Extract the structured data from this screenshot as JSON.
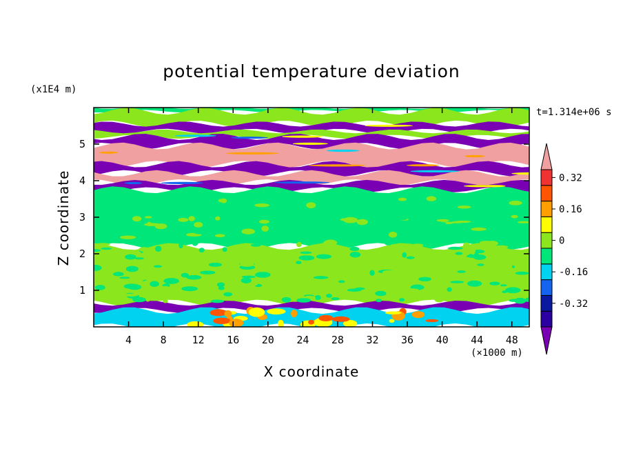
{
  "chart_data": {
    "type": "heatmap",
    "title": "potential temperature deviation",
    "xlabel": "X coordinate",
    "ylabel": "Z coordinate",
    "x_unit": "(×1000 m)",
    "y_unit": "(x1E4 m)",
    "time_label": "t=1.314e+06 s",
    "xlim": [
      0,
      50
    ],
    "ylim": [
      0,
      6
    ],
    "xticks": [
      4,
      8,
      12,
      16,
      20,
      24,
      28,
      32,
      36,
      40,
      44,
      48
    ],
    "yticks": [
      1,
      2,
      3,
      4,
      5
    ],
    "colorbar": {
      "levels": [
        -0.4,
        -0.32,
        -0.24,
        -0.16,
        -0.08,
        0,
        0.08,
        0.16,
        0.24,
        0.32,
        0.4
      ],
      "tick_labels": [
        "0.32",
        "0.16",
        "0",
        "-0.16",
        "-0.32"
      ],
      "tick_values": [
        0.32,
        0.16,
        0,
        -0.16,
        -0.32
      ],
      "colors": [
        "#7a00b4",
        "#2a00a0",
        "#0a1aa0",
        "#1464f0",
        "#00d2f0",
        "#00e678",
        "#8ce61e",
        "#ffff00",
        "#ffa000",
        "#ff5500",
        "#f03232",
        "#f0a0a0"
      ]
    },
    "bands": [
      {
        "z": [
          5.9,
          6.0
        ],
        "class": "0",
        "color": "#00e678"
      },
      {
        "z": [
          5.55,
          5.9
        ],
        "class": "0.08",
        "color": "#8ce61e"
      },
      {
        "z": [
          5.35,
          5.55
        ],
        "class": "-0.4",
        "color": "#7a00b4"
      },
      {
        "z": [
          5.2,
          5.35
        ],
        "class": "0.08",
        "color": "#8ce61e"
      },
      {
        "z": [
          4.95,
          5.2
        ],
        "class": "-0.4",
        "color": "#7a00b4"
      },
      {
        "z": [
          4.45,
          4.95
        ],
        "class": "0.4",
        "color": "#f0a0a0"
      },
      {
        "z": [
          4.2,
          4.45
        ],
        "class": "-0.4",
        "color": "#7a00b4"
      },
      {
        "z": [
          3.95,
          4.2
        ],
        "class": "0.4",
        "color": "#f0a0a0"
      },
      {
        "z": [
          3.75,
          3.95
        ],
        "class": "-0.4",
        "color": "#7a00b4"
      },
      {
        "z": [
          2.2,
          3.75
        ],
        "class": "0",
        "color": "#00e678"
      },
      {
        "z": [
          0.65,
          2.2
        ],
        "class": "0.08",
        "color": "#8ce61e"
      },
      {
        "z": [
          0.45,
          0.65
        ],
        "class": "-0.4",
        "color": "#7a00b4"
      },
      {
        "z": [
          0.0,
          0.45
        ],
        "class": "-0.08",
        "color": "#00d2f0"
      }
    ]
  }
}
